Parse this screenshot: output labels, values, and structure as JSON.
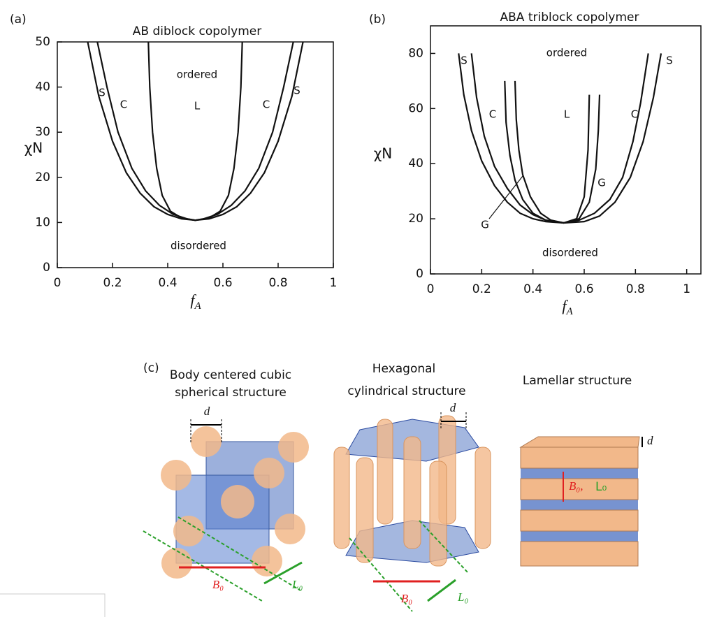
{
  "chart_data": [
    {
      "type": "line",
      "panel_label": "(a)",
      "title": "AB diblock copolymer",
      "y_label": "χN",
      "x_label": {
        "main": "f",
        "sub": "A"
      },
      "xlim": [
        0,
        1
      ],
      "xticks": [
        0,
        0.2,
        0.4,
        0.6,
        0.8,
        1
      ],
      "ylim": [
        0,
        50
      ],
      "yticks": [
        0,
        10,
        20,
        30,
        40,
        50
      ],
      "annotations": [
        "ordered",
        "L",
        "C",
        "C",
        "S",
        "S",
        "disordered"
      ],
      "series": [
        {
          "color": "#111111",
          "x": [
            0.11,
            0.15,
            0.2,
            0.25,
            0.3,
            0.35,
            0.4,
            0.45,
            0.5,
            0.55,
            0.6,
            0.65,
            0.7,
            0.75,
            0.8,
            0.85,
            0.89
          ],
          "values": [
            50,
            38,
            28,
            21,
            16.5,
            13.5,
            11.8,
            10.8,
            10.5,
            10.8,
            11.8,
            13.5,
            16.5,
            21,
            28,
            38,
            50
          ]
        },
        {
          "color": "#111111",
          "x": [
            0.145,
            0.18,
            0.22,
            0.27,
            0.32,
            0.37,
            0.42,
            0.47,
            0.5,
            0.53,
            0.58,
            0.63,
            0.68,
            0.73,
            0.78,
            0.82,
            0.855
          ],
          "values": [
            50,
            40,
            30,
            22,
            17,
            13.8,
            11.8,
            10.8,
            10.5,
            10.8,
            11.8,
            13.8,
            17,
            22,
            30,
            40,
            50
          ]
        },
        {
          "color": "#111111",
          "x": [
            0.33,
            0.335,
            0.345,
            0.36,
            0.38,
            0.41,
            0.45,
            0.5,
            0.55,
            0.59,
            0.62,
            0.64,
            0.655,
            0.665,
            0.67
          ],
          "values": [
            50,
            40,
            30,
            22,
            16,
            12.5,
            11,
            10.5,
            11,
            12.5,
            16,
            22,
            30,
            40,
            50
          ]
        }
      ]
    },
    {
      "type": "line",
      "panel_label": "(b)",
      "title": "ABA triblock copolymer",
      "y_label": "χN",
      "x_label": {
        "main": "f",
        "sub": "A"
      },
      "xlim": [
        0,
        1.05
      ],
      "xticks": [
        0,
        0.2,
        0.4,
        0.6,
        0.8,
        1
      ],
      "ylim": [
        0,
        90
      ],
      "yticks": [
        0,
        20,
        40,
        60,
        80
      ],
      "annotations": [
        "ordered",
        "S",
        "C",
        "L",
        "C",
        "S",
        "G",
        "G",
        "disordered"
      ],
      "series": [
        {
          "color": "#111111",
          "x": [
            0.11,
            0.13,
            0.16,
            0.2,
            0.25,
            0.3,
            0.35,
            0.4,
            0.45,
            0.52,
            0.6,
            0.66,
            0.72,
            0.78,
            0.83,
            0.87,
            0.9
          ],
          "values": [
            80,
            65,
            52,
            41,
            32,
            26,
            22,
            20,
            19,
            18.5,
            19,
            21,
            26,
            35,
            48,
            64,
            80
          ]
        },
        {
          "color": "#111111",
          "x": [
            0.16,
            0.18,
            0.21,
            0.25,
            0.3,
            0.35,
            0.4,
            0.45,
            0.52,
            0.58,
            0.64,
            0.7,
            0.75,
            0.79,
            0.82,
            0.85
          ],
          "values": [
            80,
            64,
            50,
            39,
            31,
            25,
            21.5,
            19.5,
            18.5,
            19.5,
            22,
            27,
            35,
            48,
            62,
            80
          ]
        },
        {
          "color": "#111111",
          "x": [
            0.29,
            0.295,
            0.31,
            0.33,
            0.36,
            0.4,
            0.45,
            0.52,
            0.58,
            0.62,
            0.645,
            0.655,
            0.66
          ],
          "values": [
            70,
            55,
            43,
            34,
            27,
            22,
            19.5,
            18.5,
            20,
            26,
            38,
            52,
            65
          ]
        },
        {
          "color": "#111111",
          "x": [
            0.33,
            0.335,
            0.345,
            0.36,
            0.39,
            0.43,
            0.47,
            0.52,
            0.57,
            0.6,
            0.615,
            0.62
          ],
          "values": [
            70,
            56,
            45,
            36,
            28,
            22,
            19.5,
            18.5,
            20,
            28,
            45,
            65
          ]
        }
      ]
    }
  ],
  "panel_c": {
    "label": "(c)",
    "structures": [
      {
        "title": [
          "Body centered cubic",
          "spherical structure"
        ],
        "d": "d",
        "field": "B₀",
        "vector": "L₀"
      },
      {
        "title": [
          "Hexagonal",
          "cylindrical  structure"
        ],
        "d": "d",
        "field": "B₀",
        "vector": "L₀"
      },
      {
        "title": [
          "Lamellar structure"
        ],
        "d": "d",
        "field": "B₀,",
        "vector": "L₀"
      }
    ]
  }
}
